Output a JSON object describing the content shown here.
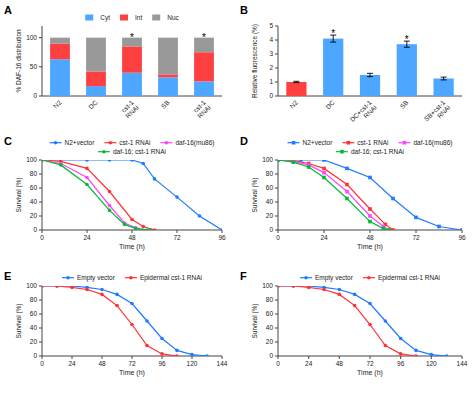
{
  "chart_data": [
    {
      "type": "bar",
      "stacked": true,
      "title": "A",
      "categories": [
        "N2",
        "DC",
        "cst-1\nRNAi",
        "SB",
        "cst-1\nRNAi"
      ],
      "series": [
        {
          "name": "Cyt",
          "color": "#4da6ff",
          "values": [
            63,
            17,
            40,
            32,
            25
          ]
        },
        {
          "name": "Int",
          "color": "#ff4040",
          "values": [
            27,
            25,
            45,
            5,
            50
          ]
        },
        {
          "name": "Nuc",
          "color": "#999999",
          "values": [
            10,
            58,
            15,
            63,
            25
          ]
        }
      ],
      "ylabel": "% DAF-16 distribution",
      "ylim": [
        0,
        120
      ],
      "yticks": [
        0,
        50,
        100
      ],
      "legend": "top",
      "annotations": [
        {
          "text": "*",
          "index": 2,
          "y": 102
        },
        {
          "text": "*",
          "index": 4,
          "y": 102
        }
      ]
    },
    {
      "type": "bar",
      "title": "B",
      "categories": [
        "N2",
        "DC",
        "DC+cst-1\nRNAi",
        "SB",
        "SB+cst-1\nRNAi"
      ],
      "values": [
        1.0,
        4.1,
        1.5,
        3.7,
        1.25
      ],
      "errors": [
        0.05,
        0.25,
        0.12,
        0.22,
        0.1
      ],
      "colors": [
        "#ff4040",
        "#4da6ff",
        "#4da6ff",
        "#4da6ff",
        "#4da6ff"
      ],
      "ylabel": "Relative fluorescence (%)",
      "ylim": [
        0,
        5
      ],
      "yticks": [
        0,
        1,
        2,
        3,
        4,
        5
      ],
      "annotations": [
        {
          "text": "*",
          "index": 1,
          "y": 4.53
        },
        {
          "text": "*",
          "index": 3,
          "y": 4.1
        }
      ]
    },
    {
      "type": "line",
      "title": "C",
      "marker": "circle",
      "series": [
        {
          "name": "N2+vector",
          "color": "#1f7bff",
          "x": [
            0,
            24,
            36,
            48,
            54,
            60,
            72,
            84,
            96
          ],
          "values": [
            100,
            100,
            100,
            100,
            95,
            73,
            47,
            20,
            0
          ]
        },
        {
          "name": "cst-1 RNAi",
          "color": "#ff3333",
          "x": [
            0,
            10,
            24,
            36,
            48,
            54,
            60
          ],
          "values": [
            100,
            98,
            88,
            55,
            15,
            5,
            0
          ]
        },
        {
          "name": "daf-16(mu86)",
          "color": "#ff44ff",
          "x": [
            0,
            10,
            24,
            36,
            44,
            50,
            56
          ],
          "values": [
            100,
            95,
            75,
            35,
            10,
            3,
            0
          ]
        },
        {
          "name": "daf-16; cst-1 RNAi",
          "color": "#00bb33",
          "x": [
            0,
            10,
            24,
            36,
            44,
            50,
            58
          ],
          "values": [
            100,
            93,
            65,
            28,
            8,
            2,
            0
          ]
        }
      ],
      "xlabel": "Time (h)",
      "ylabel": "Survival (%)",
      "xlim": [
        0,
        96
      ],
      "xticks": [
        0,
        24,
        48,
        72,
        96
      ],
      "ylim": [
        0,
        100
      ],
      "yticks": [
        0,
        20,
        40,
        60,
        80,
        100
      ],
      "legend": "top"
    },
    {
      "type": "line",
      "title": "D",
      "marker": "square",
      "series": [
        {
          "name": "N2+vector",
          "color": "#1f7bff",
          "x": [
            0,
            12,
            24,
            36,
            48,
            60,
            72,
            84,
            96
          ],
          "values": [
            100,
            100,
            100,
            88,
            75,
            45,
            18,
            5,
            0
          ]
        },
        {
          "name": "cst-1 RNAi",
          "color": "#ff3333",
          "x": [
            0,
            8,
            16,
            24,
            36,
            48,
            56,
            60
          ],
          "values": [
            100,
            99,
            95,
            88,
            65,
            30,
            8,
            0
          ]
        },
        {
          "name": "daf-16(mu86)",
          "color": "#ff44ff",
          "x": [
            0,
            8,
            16,
            24,
            36,
            48,
            55,
            58
          ],
          "values": [
            100,
            98,
            93,
            82,
            55,
            20,
            5,
            0
          ]
        },
        {
          "name": "daf-16; cst-1 RNAi",
          "color": "#00bb33",
          "x": [
            0,
            8,
            16,
            24,
            36,
            48,
            55,
            58
          ],
          "values": [
            100,
            97,
            90,
            75,
            45,
            12,
            2,
            0
          ]
        }
      ],
      "xlabel": "Time (h)",
      "ylabel": "Survival (%)",
      "xlim": [
        0,
        96
      ],
      "xticks": [
        0,
        24,
        48,
        72,
        96
      ],
      "ylim": [
        0,
        100
      ],
      "yticks": [
        0,
        20,
        40,
        60,
        80,
        100
      ],
      "legend": "top"
    },
    {
      "type": "line",
      "title": "E",
      "marker": "circle",
      "series": [
        {
          "name": "Empty vector",
          "color": "#1f7bff",
          "x": [
            0,
            12,
            24,
            36,
            48,
            60,
            72,
            84,
            96,
            108,
            120,
            132
          ],
          "values": [
            100,
            100,
            100,
            98,
            95,
            88,
            75,
            50,
            25,
            8,
            2,
            0
          ]
        },
        {
          "name": "Epidermal cst-1 RNAi",
          "color": "#ff3333",
          "x": [
            0,
            12,
            24,
            36,
            48,
            60,
            72,
            84,
            96,
            108
          ],
          "values": [
            100,
            100,
            98,
            95,
            88,
            72,
            45,
            15,
            3,
            0
          ]
        }
      ],
      "xlabel": "Time (h)",
      "ylabel": "Survival (%)",
      "xlim": [
        0,
        144
      ],
      "xticks": [
        0,
        24,
        48,
        72,
        96,
        120,
        144
      ],
      "ylim": [
        0,
        100
      ],
      "yticks": [
        0,
        20,
        40,
        60,
        80,
        100
      ],
      "legend": "top"
    },
    {
      "type": "line",
      "title": "F",
      "marker": "circle",
      "series": [
        {
          "name": "Empty vector",
          "color": "#1f7bff",
          "x": [
            0,
            12,
            24,
            36,
            48,
            60,
            72,
            84,
            96,
            108,
            120,
            132
          ],
          "values": [
            100,
            100,
            100,
            98,
            95,
            88,
            75,
            50,
            25,
            8,
            2,
            0
          ]
        },
        {
          "name": "Epidermal cst-1 RNAi",
          "color": "#ff3333",
          "x": [
            0,
            12,
            24,
            36,
            48,
            60,
            72,
            84,
            96,
            108
          ],
          "values": [
            100,
            100,
            98,
            95,
            88,
            72,
            45,
            15,
            3,
            0
          ]
        }
      ],
      "xlabel": "Time (h)",
      "ylabel": "Survival (%)",
      "xlim": [
        0,
        144
      ],
      "xticks": [
        0,
        24,
        48,
        72,
        96,
        120,
        144
      ],
      "ylim": [
        0,
        100
      ],
      "yticks": [
        0,
        20,
        40,
        60,
        80,
        100
      ],
      "legend": "top"
    }
  ]
}
